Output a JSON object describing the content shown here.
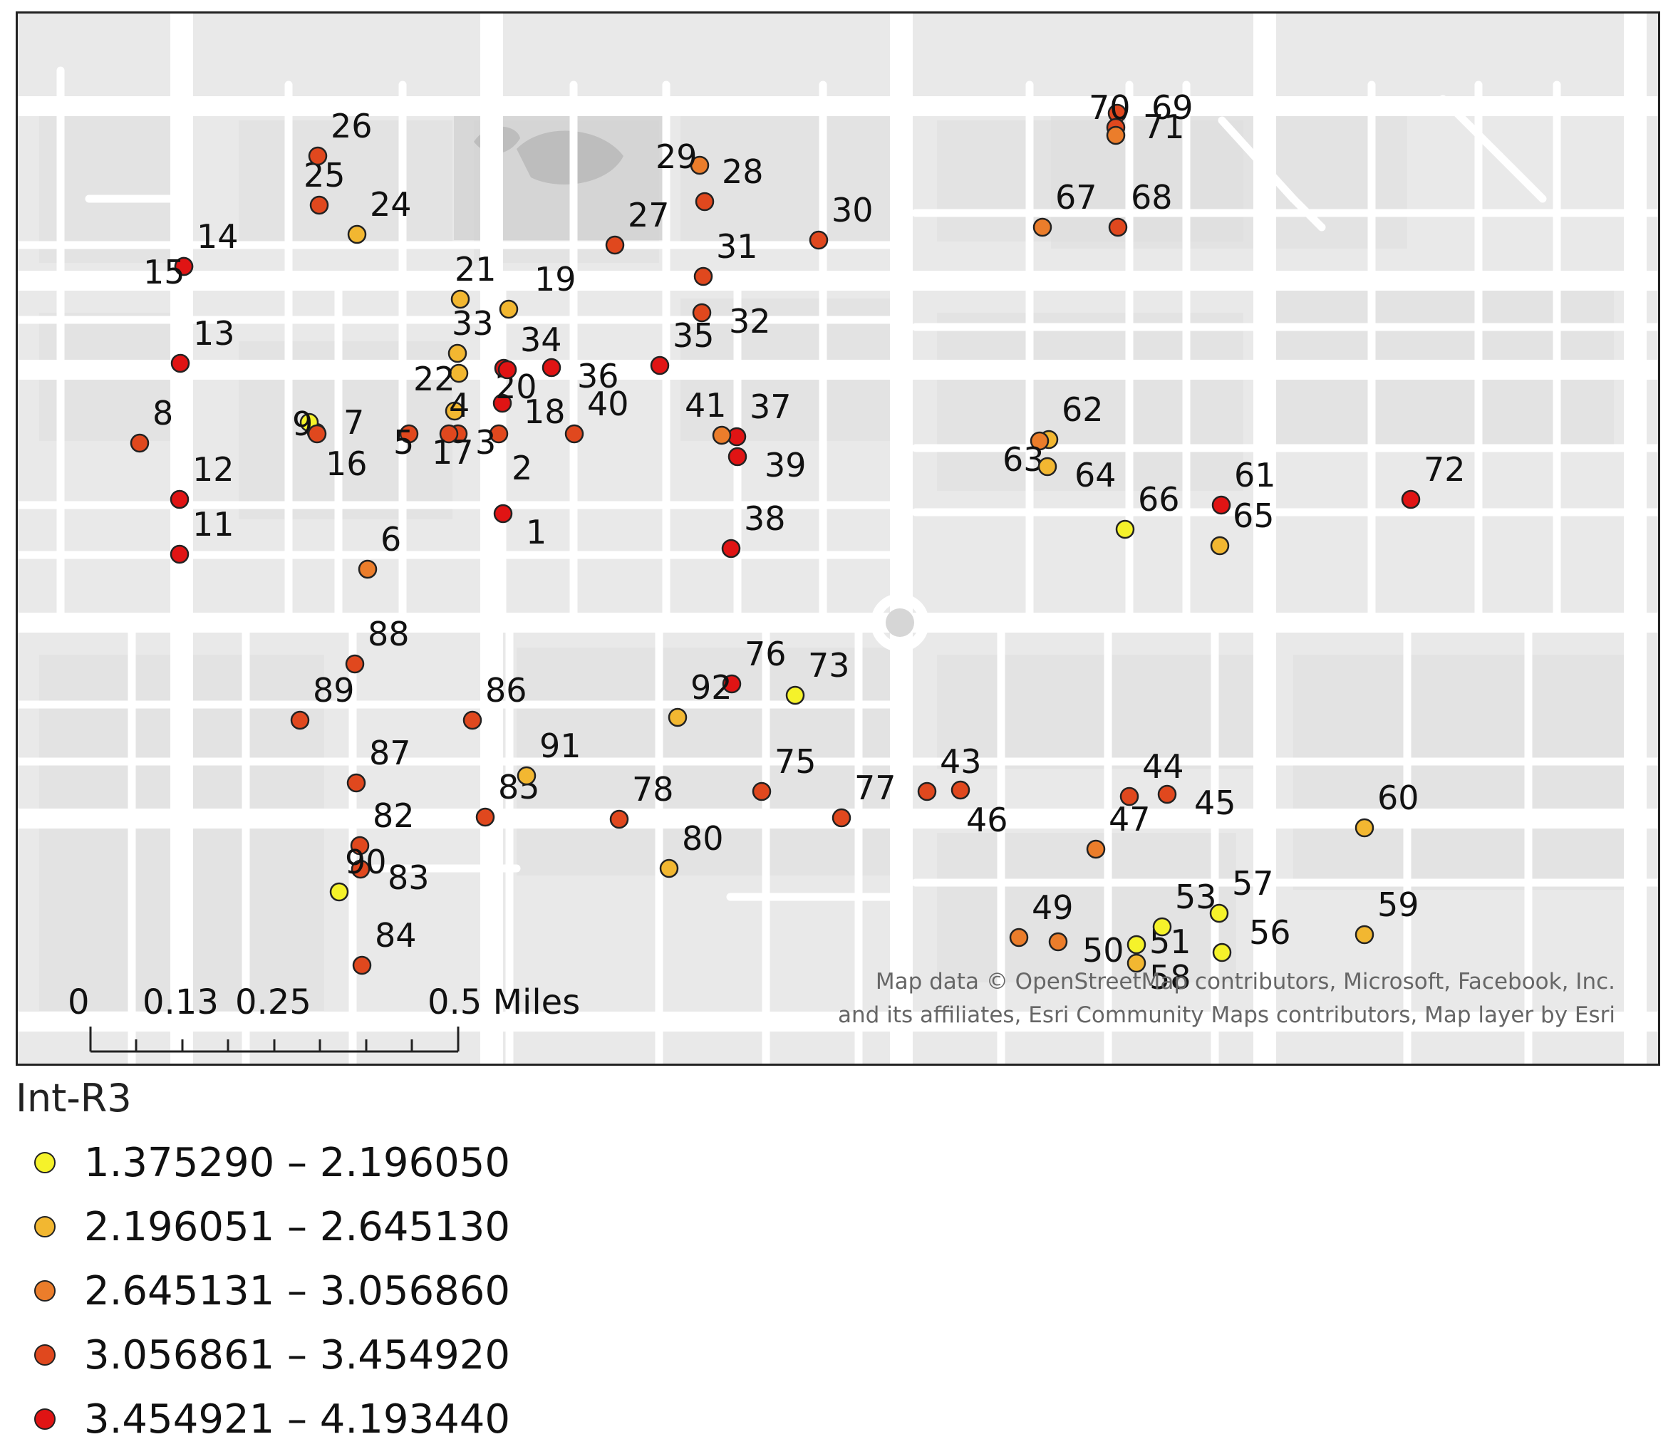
{
  "map": {
    "colors": {
      "background": "#e9e9e9",
      "road": "#ffffff",
      "block": "#dcdcdc",
      "park": "#cfcfcf",
      "water": "#bdbdbd",
      "class1": "#f5f22a",
      "class2": "#f2b731",
      "class3": "#eb7d2b",
      "class4": "#e0481e",
      "class5": "#e01414"
    },
    "scale_bar": {
      "ticks": [
        "0",
        "0.13",
        "0.25",
        "0.5 Miles"
      ]
    },
    "attribution": [
      "Map data © OpenStreetMap contributors, Microsoft, Facebook, Inc.",
      "and its affiliates, Esri Community Maps contributors, Map layer by Esri"
    ]
  },
  "legend": {
    "title": "Int-R3",
    "classes": [
      {
        "label": "1.375290 – 2.196050",
        "color": "#f5f22a"
      },
      {
        "label": "2.196051 – 2.645130",
        "color": "#f2b731"
      },
      {
        "label": "2.645131 – 3.056860",
        "color": "#eb7d2b"
      },
      {
        "label": "3.056861 – 3.454920",
        "color": "#e0481e"
      },
      {
        "label": "3.454921 – 4.193440",
        "color": "#e01414"
      }
    ]
  },
  "points": [
    {
      "id": "1",
      "class": 5
    },
    {
      "id": "2",
      "class": 4
    },
    {
      "id": "3",
      "class": 4
    },
    {
      "id": "4",
      "class": 2
    },
    {
      "id": "5",
      "class": 4
    },
    {
      "id": "6",
      "class": 3
    },
    {
      "id": "7",
      "class": 4
    },
    {
      "id": "8",
      "class": 4
    },
    {
      "id": "9",
      "class": 1
    },
    {
      "id": "11",
      "class": 5
    },
    {
      "id": "12",
      "class": 5
    },
    {
      "id": "13",
      "class": 5
    },
    {
      "id": "14",
      "class": 5
    },
    {
      "id": "15",
      "class": 5
    },
    {
      "id": "16",
      "class": 4
    },
    {
      "id": "17",
      "class": 4
    },
    {
      "id": "18",
      "class": 5
    },
    {
      "id": "19",
      "class": 2
    },
    {
      "id": "20",
      "class": 5
    },
    {
      "id": "21",
      "class": 2
    },
    {
      "id": "22",
      "class": 2
    },
    {
      "id": "24",
      "class": 2
    },
    {
      "id": "25",
      "class": 4
    },
    {
      "id": "26",
      "class": 4
    },
    {
      "id": "27",
      "class": 4
    },
    {
      "id": "28",
      "class": 4
    },
    {
      "id": "29",
      "class": 3
    },
    {
      "id": "30",
      "class": 4
    },
    {
      "id": "31",
      "class": 4
    },
    {
      "id": "32",
      "class": 4
    },
    {
      "id": "33",
      "class": 2
    },
    {
      "id": "34",
      "class": 5
    },
    {
      "id": "35",
      "class": 5
    },
    {
      "id": "36",
      "class": 5
    },
    {
      "id": "37",
      "class": 5
    },
    {
      "id": "38",
      "class": 5
    },
    {
      "id": "39",
      "class": 5
    },
    {
      "id": "40",
      "class": 4
    },
    {
      "id": "41",
      "class": 3
    },
    {
      "id": "43",
      "class": 4
    },
    {
      "id": "44",
      "class": 4
    },
    {
      "id": "45",
      "class": 4
    },
    {
      "id": "46",
      "class": 4
    },
    {
      "id": "47",
      "class": 3
    },
    {
      "id": "49",
      "class": 3
    },
    {
      "id": "50",
      "class": 3
    },
    {
      "id": "51",
      "class": 1
    },
    {
      "id": "53",
      "class": 1
    },
    {
      "id": "56",
      "class": 1
    },
    {
      "id": "57",
      "class": 1
    },
    {
      "id": "58",
      "class": 2
    },
    {
      "id": "59",
      "class": 2
    },
    {
      "id": "60",
      "class": 2
    },
    {
      "id": "61",
      "class": 5
    },
    {
      "id": "62",
      "class": 2
    },
    {
      "id": "63",
      "class": 3
    },
    {
      "id": "64",
      "class": 2
    },
    {
      "id": "65",
      "class": 2
    },
    {
      "id": "66",
      "class": 1
    },
    {
      "id": "67",
      "class": 3
    },
    {
      "id": "68",
      "class": 4
    },
    {
      "id": "69",
      "class": 4
    },
    {
      "id": "70",
      "class": 4
    },
    {
      "id": "71",
      "class": 3
    },
    {
      "id": "72",
      "class": 5
    },
    {
      "id": "73",
      "class": 1
    },
    {
      "id": "75",
      "class": 4
    },
    {
      "id": "76",
      "class": 5
    },
    {
      "id": "77",
      "class": 4
    },
    {
      "id": "78",
      "class": 4
    },
    {
      "id": "80",
      "class": 2
    },
    {
      "id": "82",
      "class": 4
    },
    {
      "id": "83",
      "class": 4
    },
    {
      "id": "84",
      "class": 4
    },
    {
      "id": "85",
      "class": 4
    },
    {
      "id": "86",
      "class": 4
    },
    {
      "id": "87",
      "class": 4
    },
    {
      "id": "88",
      "class": 4
    },
    {
      "id": "89",
      "class": 4
    },
    {
      "id": "90",
      "class": 1
    },
    {
      "id": "91",
      "class": 2
    },
    {
      "id": "92",
      "class": 2
    }
  ]
}
